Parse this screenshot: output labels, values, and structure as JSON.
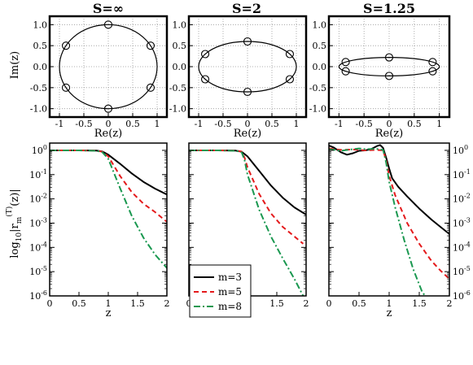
{
  "chart_data": [
    {
      "type": "scatter",
      "title": "S=∞",
      "xlabel": "Re(z)",
      "ylabel": "Im(z)",
      "xlim": [
        -1.2,
        1.2
      ],
      "ylim": [
        -1.2,
        1.2
      ],
      "xticks": [
        "-1",
        "-0.5",
        "0",
        "0.5",
        "1"
      ],
      "yticks": [
        "-1.0",
        "-0.5",
        "0.0",
        "0.5",
        "1.0"
      ],
      "xtick_values": [
        -1,
        -0.5,
        0,
        0.5,
        1
      ],
      "ytick_values": [
        -1,
        -0.5,
        0,
        0.5,
        1
      ],
      "grid": true,
      "ellipse": {
        "a": 1.0,
        "b": 1.0
      },
      "points": [
        {
          "x": 0,
          "y": 1
        },
        {
          "x": 0.866,
          "y": 0.5
        },
        {
          "x": 0.866,
          "y": -0.5
        },
        {
          "x": 0,
          "y": -1
        },
        {
          "x": -0.866,
          "y": -0.5
        },
        {
          "x": -0.866,
          "y": 0.5
        }
      ]
    },
    {
      "type": "scatter",
      "title": "S=2",
      "xlabel": "Re(z)",
      "ylabel": "",
      "xlim": [
        -1.2,
        1.2
      ],
      "ylim": [
        -1.2,
        1.2
      ],
      "xticks": [
        "-1",
        "-0.5",
        "0",
        "0.5",
        "1"
      ],
      "yticks": [
        "-1.0",
        "-0.5",
        "0.0",
        "0.5",
        "1.0"
      ],
      "xtick_values": [
        -1,
        -0.5,
        0,
        0.5,
        1
      ],
      "ytick_values": [
        -1,
        -0.5,
        0,
        0.5,
        1
      ],
      "grid": true,
      "ellipse": {
        "a": 1.0,
        "b": 0.6
      },
      "points": [
        {
          "x": 0,
          "y": 0.6
        },
        {
          "x": 0.866,
          "y": 0.3
        },
        {
          "x": 0.866,
          "y": -0.3
        },
        {
          "x": 0,
          "y": -0.6
        },
        {
          "x": -0.866,
          "y": -0.3
        },
        {
          "x": -0.866,
          "y": 0.3
        }
      ]
    },
    {
      "type": "scatter",
      "title": "S=1.25",
      "xlabel": "Re(z)",
      "ylabel": "",
      "xlim": [
        -1.2,
        1.2
      ],
      "ylim": [
        -1.2,
        1.2
      ],
      "xticks": [
        "-1",
        "-0.5",
        "0",
        "0.5",
        "1"
      ],
      "yticks": [
        "-1.0",
        "-0.5",
        "0.0",
        "0.5",
        "1.0"
      ],
      "xtick_values": [
        -1,
        -0.5,
        0,
        0.5,
        1
      ],
      "ytick_values": [
        -1,
        -0.5,
        0,
        0.5,
        1
      ],
      "grid": true,
      "ellipse": {
        "a": 1.0,
        "b": 0.22
      },
      "points": [
        {
          "x": 0,
          "y": 0.22
        },
        {
          "x": 0.866,
          "y": 0.11
        },
        {
          "x": 0.866,
          "y": -0.11
        },
        {
          "x": 0,
          "y": -0.22
        },
        {
          "x": -0.866,
          "y": -0.11
        },
        {
          "x": -0.866,
          "y": 0.11
        }
      ]
    },
    {
      "type": "line",
      "xlabel": "z",
      "ylabel": "log10|rm(T)(z)|",
      "xlim": [
        0,
        2
      ],
      "ylim_log10": [
        -6,
        0.3
      ],
      "yscale": "log",
      "xticks": [
        "0",
        "0.5",
        "1",
        "1.5",
        "2"
      ],
      "xtick_values": [
        0,
        0.5,
        1,
        1.5,
        2
      ],
      "yticks": [
        "10-6",
        "10-5",
        "10-4",
        "10-3",
        "10-2",
        "10-1",
        "100"
      ],
      "ytick_exponents": [
        -6,
        -5,
        -4,
        -3,
        -2,
        -1,
        0
      ],
      "series": [
        {
          "name": "m=3",
          "color": "#000000",
          "x": [
            0,
            0.5,
            0.8,
            0.9,
            1.0,
            1.2,
            1.4,
            1.6,
            1.8,
            2.0
          ],
          "log10_y": [
            0,
            0,
            -0.01,
            -0.05,
            -0.18,
            -0.55,
            -0.95,
            -1.3,
            -1.58,
            -1.82
          ]
        },
        {
          "name": "m=5",
          "color": "#e41a1c",
          "x": [
            0,
            0.5,
            0.8,
            0.9,
            1.0,
            1.2,
            1.4,
            1.6,
            1.8,
            2.0
          ],
          "log10_y": [
            0,
            0,
            -0.01,
            -0.06,
            -0.25,
            -1.05,
            -1.72,
            -2.2,
            -2.55,
            -2.95
          ]
        },
        {
          "name": "m=8",
          "color": "#1a9850",
          "x": [
            0,
            0.5,
            0.8,
            0.9,
            1.0,
            1.2,
            1.4,
            1.6,
            1.8,
            2.0
          ],
          "log10_y": [
            0,
            0,
            -0.02,
            -0.08,
            -0.35,
            -1.55,
            -2.7,
            -3.6,
            -4.3,
            -4.85
          ]
        }
      ]
    },
    {
      "type": "line",
      "xlabel": "z",
      "ylabel": "",
      "xlim": [
        0,
        2
      ],
      "ylim_log10": [
        -6,
        0.3
      ],
      "yscale": "log",
      "xticks": [
        "0",
        "0.5",
        "1",
        "1.5",
        "2"
      ],
      "xtick_values": [
        0,
        0.5,
        1,
        1.5,
        2
      ],
      "series": [
        {
          "name": "m=3",
          "color": "#000000",
          "x": [
            0,
            0.5,
            0.8,
            0.9,
            1.0,
            1.2,
            1.4,
            1.6,
            1.8,
            2.0
          ],
          "log10_y": [
            0,
            0,
            -0.01,
            -0.06,
            -0.25,
            -0.85,
            -1.45,
            -1.95,
            -2.35,
            -2.65
          ]
        },
        {
          "name": "m=5",
          "color": "#e41a1c",
          "x": [
            0,
            0.5,
            0.8,
            0.9,
            0.95,
            1.0,
            1.2,
            1.4,
            1.6,
            1.8,
            1.95
          ],
          "log10_y": [
            0,
            0,
            -0.01,
            -0.05,
            -0.3,
            -0.7,
            -1.8,
            -2.6,
            -3.15,
            -3.55,
            -3.85
          ]
        },
        {
          "name": "m=8",
          "color": "#1a9850",
          "x": [
            0,
            0.5,
            0.8,
            0.9,
            0.95,
            1.0,
            1.2,
            1.4,
            1.6,
            1.8,
            1.95
          ],
          "log10_y": [
            0,
            0,
            -0.02,
            -0.08,
            -0.4,
            -1.0,
            -2.45,
            -3.55,
            -4.45,
            -5.3,
            -6.0
          ]
        }
      ]
    },
    {
      "type": "line",
      "xlabel": "z",
      "ylabel": "",
      "xlim": [
        0,
        2
      ],
      "ylim_log10": [
        -6,
        0.3
      ],
      "yscale": "log",
      "yaxis_side": "right",
      "xticks": [
        "0",
        "0.5",
        "1",
        "1.5",
        "2"
      ],
      "xtick_values": [
        0,
        0.5,
        1,
        1.5,
        2
      ],
      "yticks": [
        "10-6",
        "10-5",
        "10-4",
        "10-3",
        "10-2",
        "10-1",
        "100"
      ],
      "ytick_exponents": [
        -6,
        -5,
        -4,
        -3,
        -2,
        -1,
        0
      ],
      "series": [
        {
          "name": "m=3",
          "color": "#000000",
          "x": [
            0,
            0.08,
            0.2,
            0.3,
            0.4,
            0.5,
            0.6,
            0.7,
            0.8,
            0.85,
            0.9,
            0.95,
            1.0,
            1.05,
            1.15,
            1.3,
            1.5,
            1.7,
            1.85,
            2.0
          ],
          "log10_y": [
            0.2,
            0.12,
            -0.08,
            -0.18,
            -0.12,
            -0.02,
            0.0,
            0.05,
            0.18,
            0.22,
            0.1,
            -0.3,
            -0.75,
            -1.15,
            -1.5,
            -1.9,
            -2.4,
            -2.85,
            -3.15,
            -3.45
          ]
        },
        {
          "name": "m=5",
          "color": "#e41a1c",
          "x": [
            0,
            0.2,
            0.4,
            0.6,
            0.8,
            0.9,
            0.95,
            1.0,
            1.1,
            1.3,
            1.5,
            1.7,
            1.85,
            2.0
          ],
          "log10_y": [
            0.08,
            0.02,
            0.04,
            0.0,
            0.02,
            0.0,
            -0.4,
            -1.05,
            -1.85,
            -3.0,
            -3.85,
            -4.55,
            -4.95,
            -5.3
          ]
        },
        {
          "name": "m=8",
          "color": "#1a9850",
          "x": [
            0,
            0.2,
            0.4,
            0.5,
            0.6,
            0.8,
            0.9,
            0.95,
            1.0,
            1.1,
            1.25,
            1.4,
            1.55,
            1.6
          ],
          "log10_y": [
            0.05,
            -0.02,
            0.05,
            0.08,
            0.05,
            0.06,
            0.02,
            -0.5,
            -1.3,
            -2.35,
            -3.7,
            -4.9,
            -5.85,
            -6.0
          ]
        }
      ]
    }
  ],
  "legend": {
    "placement": "lower-left of middle lower panel",
    "entries": [
      {
        "label": "m=3",
        "color": "#000000",
        "dash": "solid"
      },
      {
        "label": "m=5",
        "color": "#e41a1c",
        "dash": "dashed"
      },
      {
        "label": "m=8",
        "color": "#1a9850",
        "dash": "dash-dot"
      }
    ]
  },
  "lower_ylabel": {
    "base": "log",
    "sub": "10",
    "mid": "|r",
    "m": "m",
    "T": "(T)",
    "tail": "(z)|"
  }
}
